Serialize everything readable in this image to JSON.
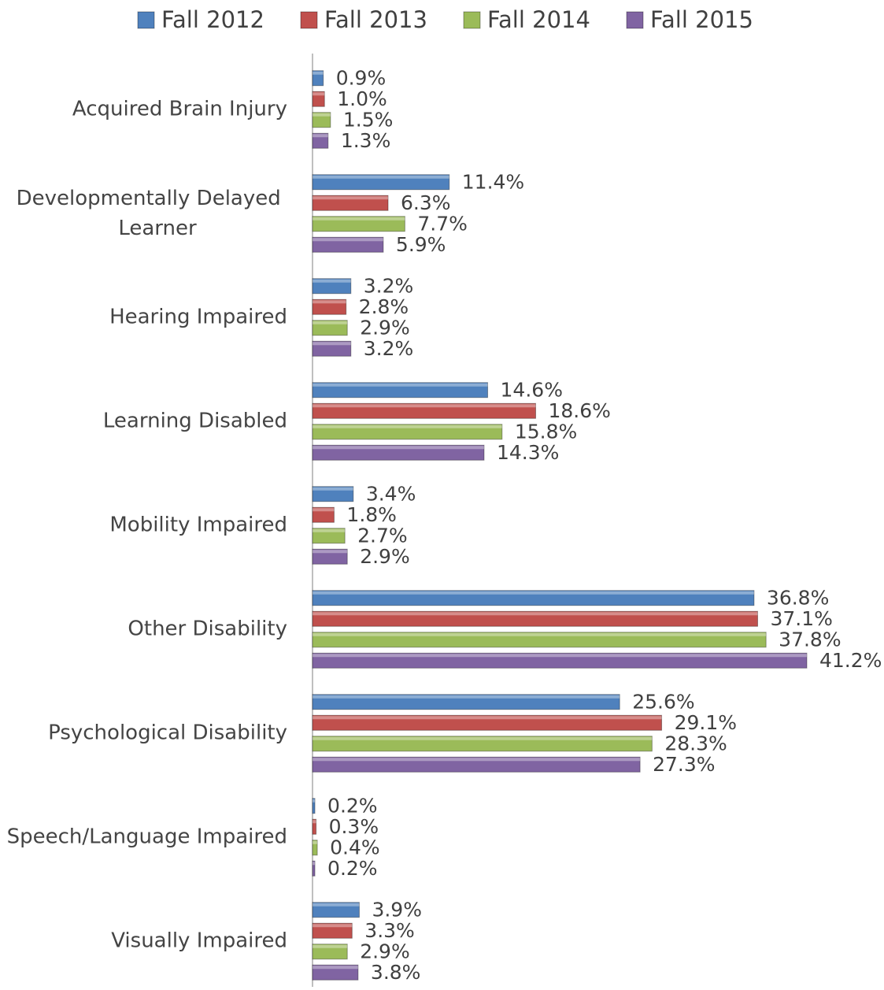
{
  "chart_data": {
    "type": "bar",
    "orientation": "horizontal",
    "categories": [
      "Acquired Brain Injury",
      "Developmentally Delayed Learner",
      "Hearing Impaired",
      "Learning Disabled",
      "Mobility Impaired",
      "Other Disability",
      "Psychological Disability",
      "Speech/Language Impaired",
      "Visually Impaired"
    ],
    "series": [
      {
        "name": "Fall 2012",
        "color": "#4f81bd",
        "values": [
          0.9,
          11.4,
          3.2,
          14.6,
          3.4,
          36.8,
          25.6,
          0.2,
          3.9
        ],
        "value_labels": [
          "0.9%",
          "11.4%",
          "3.2%",
          "14.6%",
          "3.4%",
          "36.8%",
          "25.6%",
          "0.2%",
          "3.9%"
        ]
      },
      {
        "name": "Fall 2013",
        "color": "#c0504d",
        "values": [
          1.0,
          6.3,
          2.8,
          18.6,
          1.8,
          37.1,
          29.1,
          0.3,
          3.3
        ],
        "value_labels": [
          "1.0%",
          "6.3%",
          "2.8%",
          "18.6%",
          "1.8%",
          "37.1%",
          "29.1%",
          "0.3%",
          "3.3%"
        ]
      },
      {
        "name": "Fall 2014",
        "color": "#9bbb59",
        "values": [
          1.5,
          7.7,
          2.9,
          15.8,
          2.7,
          37.8,
          28.3,
          0.4,
          2.9
        ],
        "value_labels": [
          "1.5%",
          "7.7%",
          "2.9%",
          "15.8%",
          "2.7%",
          "37.8%",
          "28.3%",
          "0.4%",
          "2.9%"
        ]
      },
      {
        "name": "Fall 2015",
        "color": "#8064a2",
        "values": [
          1.3,
          5.9,
          3.2,
          14.3,
          2.9,
          41.2,
          27.3,
          0.2,
          3.8
        ],
        "value_labels": [
          "1.3%",
          "5.9%",
          "3.2%",
          "14.3%",
          "2.9%",
          "41.2%",
          "27.3%",
          "0.2%",
          "3.8%"
        ]
      }
    ],
    "legend": "top"
  }
}
